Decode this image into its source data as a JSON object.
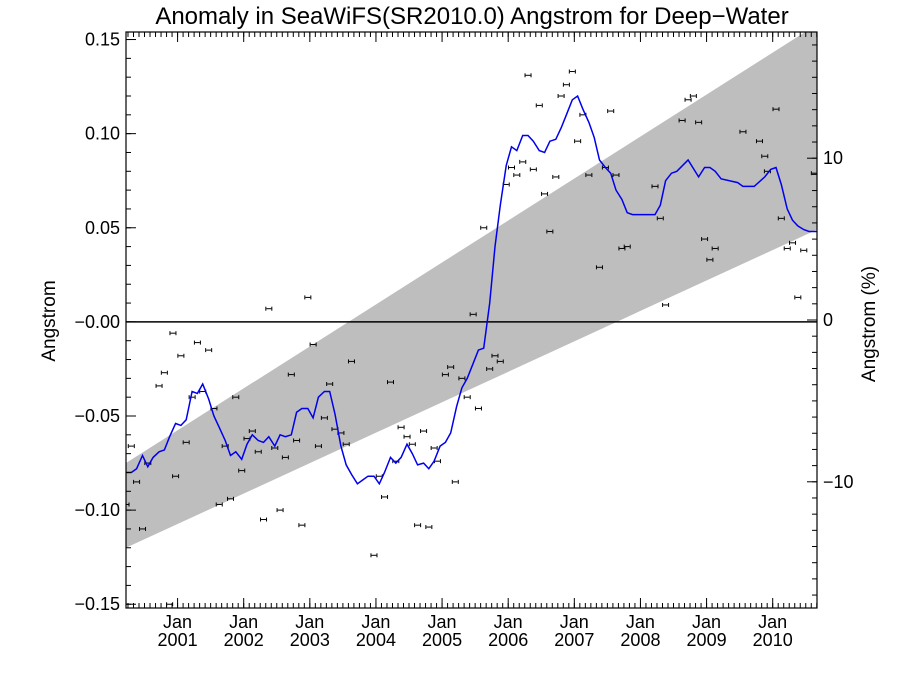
{
  "chart_data": {
    "type": "scatter",
    "title": "Anomaly in SeaWiFS(SR2010.0) Angstrom for Deep−Water",
    "ylabel": "Angstrom",
    "ylabel_right": "Angstrom (%)",
    "xlabel": "",
    "xlim": [
      2000.22,
      2010.67
    ],
    "ylim": [
      -0.152,
      0.154
    ],
    "y2lim": [
      -17.8,
      17.8
    ],
    "grid": false,
    "y_ticks": [
      {
        "value": 0.15,
        "label": "0.15"
      },
      {
        "value": 0.1,
        "label": "0.10"
      },
      {
        "value": 0.05,
        "label": "0.05"
      },
      {
        "value": 0.0,
        "label": "−0.00"
      },
      {
        "value": -0.05,
        "label": "−0.05"
      },
      {
        "value": -0.1,
        "label": "−0.10"
      },
      {
        "value": -0.15,
        "label": "−0.15"
      }
    ],
    "y2_ticks": [
      {
        "value": 10,
        "label": "10"
      },
      {
        "value": 0,
        "label": "0"
      },
      {
        "value": -10,
        "label": "−10"
      }
    ],
    "x_ticks": [
      {
        "value": 2001,
        "month": "Jan",
        "year": "2001"
      },
      {
        "value": 2002,
        "month": "Jan",
        "year": "2002"
      },
      {
        "value": 2003,
        "month": "Jan",
        "year": "2003"
      },
      {
        "value": 2004,
        "month": "Jan",
        "year": "2004"
      },
      {
        "value": 2005,
        "month": "Jan",
        "year": "2005"
      },
      {
        "value": 2006,
        "month": "Jan",
        "year": "2006"
      },
      {
        "value": 2007,
        "month": "Jan",
        "year": "2007"
      },
      {
        "value": 2008,
        "month": "Jan",
        "year": "2008"
      },
      {
        "value": 2009,
        "month": "Jan",
        "year": "2009"
      },
      {
        "value": 2010,
        "month": "Jan",
        "year": "2010"
      }
    ],
    "band": {
      "x": [
        2000.22,
        2010.67
      ],
      "upper": [
        -0.075,
        0.158
      ],
      "lower": [
        -0.12,
        0.049
      ]
    },
    "zero_line": 0,
    "series": [
      {
        "kind": "scatter",
        "points": [
          [
            2000.22,
            -0.097
          ],
          [
            2000.3,
            -0.066
          ],
          [
            2000.38,
            -0.085
          ],
          [
            2000.47,
            -0.11
          ],
          [
            2000.55,
            -0.075
          ],
          [
            2000.72,
            -0.034
          ],
          [
            2000.8,
            -0.027
          ],
          [
            2000.88,
            -0.15
          ],
          [
            2000.93,
            -0.006
          ],
          [
            2000.97,
            -0.082
          ],
          [
            2001.05,
            -0.018
          ],
          [
            2001.13,
            -0.064
          ],
          [
            2001.22,
            -0.04
          ],
          [
            2001.3,
            -0.011
          ],
          [
            2001.38,
            -0.037
          ],
          [
            2001.47,
            -0.015
          ],
          [
            2001.55,
            -0.046
          ],
          [
            2001.63,
            -0.097
          ],
          [
            2001.72,
            -0.066
          ],
          [
            2001.8,
            -0.094
          ],
          [
            2001.88,
            -0.04
          ],
          [
            2001.97,
            -0.079
          ],
          [
            2002.05,
            -0.062
          ],
          [
            2002.13,
            -0.058
          ],
          [
            2002.22,
            -0.069
          ],
          [
            2002.3,
            -0.105
          ],
          [
            2002.38,
            0.007
          ],
          [
            2002.47,
            -0.067
          ],
          [
            2002.55,
            -0.1
          ],
          [
            2002.63,
            -0.072
          ],
          [
            2002.72,
            -0.028
          ],
          [
            2002.8,
            -0.063
          ],
          [
            2002.88,
            -0.108
          ],
          [
            2002.97,
            0.013
          ],
          [
            2003.05,
            -0.012
          ],
          [
            2003.13,
            -0.066
          ],
          [
            2003.22,
            -0.051
          ],
          [
            2003.3,
            -0.033
          ],
          [
            2003.38,
            -0.057
          ],
          [
            2003.47,
            -0.059
          ],
          [
            2003.55,
            -0.065
          ],
          [
            2003.63,
            -0.021
          ],
          [
            2003.97,
            -0.124
          ],
          [
            2004.05,
            -0.082
          ],
          [
            2004.13,
            -0.093
          ],
          [
            2004.22,
            -0.032
          ],
          [
            2004.3,
            -0.074
          ],
          [
            2004.38,
            -0.056
          ],
          [
            2004.47,
            -0.061
          ],
          [
            2004.55,
            -0.065
          ],
          [
            2004.63,
            -0.108
          ],
          [
            2004.72,
            -0.058
          ],
          [
            2004.8,
            -0.109
          ],
          [
            2004.88,
            -0.067
          ],
          [
            2004.93,
            -0.074
          ],
          [
            2005.05,
            -0.028
          ],
          [
            2005.13,
            -0.024
          ],
          [
            2005.2,
            -0.085
          ],
          [
            2005.3,
            -0.03
          ],
          [
            2005.38,
            -0.04
          ],
          [
            2005.47,
            0.004
          ],
          [
            2005.55,
            -0.046
          ],
          [
            2005.63,
            0.05
          ],
          [
            2005.72,
            -0.025
          ],
          [
            2005.8,
            -0.018
          ],
          [
            2005.88,
            -0.021
          ],
          [
            2005.97,
            0.073
          ],
          [
            2006.05,
            0.082
          ],
          [
            2006.13,
            0.078
          ],
          [
            2006.22,
            0.085
          ],
          [
            2006.3,
            0.131
          ],
          [
            2006.38,
            0.081
          ],
          [
            2006.47,
            0.115
          ],
          [
            2006.55,
            0.068
          ],
          [
            2006.63,
            0.048
          ],
          [
            2006.72,
            0.077
          ],
          [
            2006.8,
            0.12
          ],
          [
            2006.88,
            0.126
          ],
          [
            2006.97,
            0.133
          ],
          [
            2007.05,
            0.096
          ],
          [
            2007.13,
            0.11
          ],
          [
            2007.22,
            0.078
          ],
          [
            2007.38,
            0.029
          ],
          [
            2007.47,
            0.082
          ],
          [
            2007.55,
            0.112
          ],
          [
            2007.63,
            0.078
          ],
          [
            2007.72,
            0.039
          ],
          [
            2007.8,
            0.04
          ],
          [
            2008.22,
            0.072
          ],
          [
            2008.3,
            0.055
          ],
          [
            2008.38,
            0.009
          ],
          [
            2008.63,
            0.107
          ],
          [
            2008.72,
            0.118
          ],
          [
            2008.8,
            0.12
          ],
          [
            2008.88,
            0.106
          ],
          [
            2008.97,
            0.044
          ],
          [
            2009.05,
            0.033
          ],
          [
            2009.13,
            0.039
          ],
          [
            2009.55,
            0.101
          ],
          [
            2009.8,
            0.096
          ],
          [
            2009.88,
            0.088
          ],
          [
            2009.92,
            0.08
          ],
          [
            2010.05,
            0.113
          ],
          [
            2010.13,
            0.055
          ],
          [
            2010.22,
            0.039
          ],
          [
            2010.3,
            0.042
          ],
          [
            2010.38,
            0.013
          ],
          [
            2010.47,
            0.038
          ],
          [
            2010.63,
            0.079
          ]
        ]
      },
      {
        "kind": "line",
        "color": "#0000ee",
        "points": [
          [
            2000.22,
            -0.08
          ],
          [
            2000.3,
            -0.08
          ],
          [
            2000.38,
            -0.078
          ],
          [
            2000.47,
            -0.071
          ],
          [
            2000.55,
            -0.077
          ],
          [
            2000.63,
            -0.072
          ],
          [
            2000.72,
            -0.069
          ],
          [
            2000.8,
            -0.068
          ],
          [
            2000.88,
            -0.061
          ],
          [
            2000.97,
            -0.054
          ],
          [
            2001.05,
            -0.055
          ],
          [
            2001.13,
            -0.052
          ],
          [
            2001.22,
            -0.037
          ],
          [
            2001.3,
            -0.038
          ],
          [
            2001.38,
            -0.033
          ],
          [
            2001.47,
            -0.041
          ],
          [
            2001.55,
            -0.05
          ],
          [
            2001.63,
            -0.056
          ],
          [
            2001.72,
            -0.063
          ],
          [
            2001.8,
            -0.071
          ],
          [
            2001.88,
            -0.069
          ],
          [
            2001.97,
            -0.073
          ],
          [
            2002.05,
            -0.065
          ],
          [
            2002.13,
            -0.06
          ],
          [
            2002.22,
            -0.063
          ],
          [
            2002.3,
            -0.064
          ],
          [
            2002.38,
            -0.061
          ],
          [
            2002.47,
            -0.066
          ],
          [
            2002.55,
            -0.06
          ],
          [
            2002.63,
            -0.061
          ],
          [
            2002.72,
            -0.06
          ],
          [
            2002.8,
            -0.048
          ],
          [
            2002.88,
            -0.046
          ],
          [
            2002.97,
            -0.046
          ],
          [
            2003.05,
            -0.051
          ],
          [
            2003.13,
            -0.04
          ],
          [
            2003.22,
            -0.037
          ],
          [
            2003.3,
            -0.037
          ],
          [
            2003.38,
            -0.049
          ],
          [
            2003.47,
            -0.066
          ],
          [
            2003.55,
            -0.076
          ],
          [
            2003.63,
            -0.081
          ],
          [
            2003.72,
            -0.086
          ],
          [
            2003.8,
            -0.084
          ],
          [
            2003.88,
            -0.082
          ],
          [
            2003.97,
            -0.082
          ],
          [
            2004.05,
            -0.086
          ],
          [
            2004.13,
            -0.08
          ],
          [
            2004.22,
            -0.072
          ],
          [
            2004.3,
            -0.075
          ],
          [
            2004.38,
            -0.072
          ],
          [
            2004.47,
            -0.065
          ],
          [
            2004.55,
            -0.07
          ],
          [
            2004.63,
            -0.076
          ],
          [
            2004.72,
            -0.075
          ],
          [
            2004.8,
            -0.078
          ],
          [
            2004.88,
            -0.074
          ],
          [
            2004.97,
            -0.066
          ],
          [
            2005.05,
            -0.064
          ],
          [
            2005.13,
            -0.059
          ],
          [
            2005.22,
            -0.045
          ],
          [
            2005.3,
            -0.035
          ],
          [
            2005.38,
            -0.03
          ],
          [
            2005.47,
            -0.022
          ],
          [
            2005.55,
            -0.015
          ],
          [
            2005.63,
            -0.014
          ],
          [
            2005.72,
            0.01
          ],
          [
            2005.8,
            0.04
          ],
          [
            2005.88,
            0.062
          ],
          [
            2005.97,
            0.083
          ],
          [
            2006.05,
            0.093
          ],
          [
            2006.13,
            0.091
          ],
          [
            2006.22,
            0.099
          ],
          [
            2006.3,
            0.099
          ],
          [
            2006.38,
            0.096
          ],
          [
            2006.47,
            0.091
          ],
          [
            2006.55,
            0.09
          ],
          [
            2006.63,
            0.096
          ],
          [
            2006.72,
            0.097
          ],
          [
            2006.8,
            0.103
          ],
          [
            2006.88,
            0.11
          ],
          [
            2006.97,
            0.118
          ],
          [
            2007.05,
            0.12
          ],
          [
            2007.13,
            0.113
          ],
          [
            2007.22,
            0.106
          ],
          [
            2007.3,
            0.098
          ],
          [
            2007.38,
            0.086
          ],
          [
            2007.47,
            0.082
          ],
          [
            2007.55,
            0.079
          ],
          [
            2007.63,
            0.07
          ],
          [
            2007.72,
            0.065
          ],
          [
            2007.8,
            0.058
          ],
          [
            2007.88,
            0.057
          ],
          [
            2007.97,
            0.057
          ],
          [
            2008.05,
            0.057
          ],
          [
            2008.22,
            0.057
          ],
          [
            2008.3,
            0.062
          ],
          [
            2008.38,
            0.075
          ],
          [
            2008.47,
            0.079
          ],
          [
            2008.55,
            0.08
          ],
          [
            2008.72,
            0.086
          ],
          [
            2008.88,
            0.077
          ],
          [
            2008.97,
            0.082
          ],
          [
            2009.05,
            0.082
          ],
          [
            2009.13,
            0.08
          ],
          [
            2009.22,
            0.076
          ],
          [
            2009.47,
            0.074
          ],
          [
            2009.55,
            0.072
          ],
          [
            2009.72,
            0.072
          ],
          [
            2009.88,
            0.077
          ],
          [
            2009.97,
            0.081
          ],
          [
            2010.05,
            0.082
          ],
          [
            2010.13,
            0.073
          ],
          [
            2010.22,
            0.06
          ],
          [
            2010.3,
            0.054
          ],
          [
            2010.38,
            0.051
          ],
          [
            2010.47,
            0.049
          ],
          [
            2010.55,
            0.048
          ],
          [
            2010.67,
            0.048
          ]
        ]
      }
    ]
  }
}
